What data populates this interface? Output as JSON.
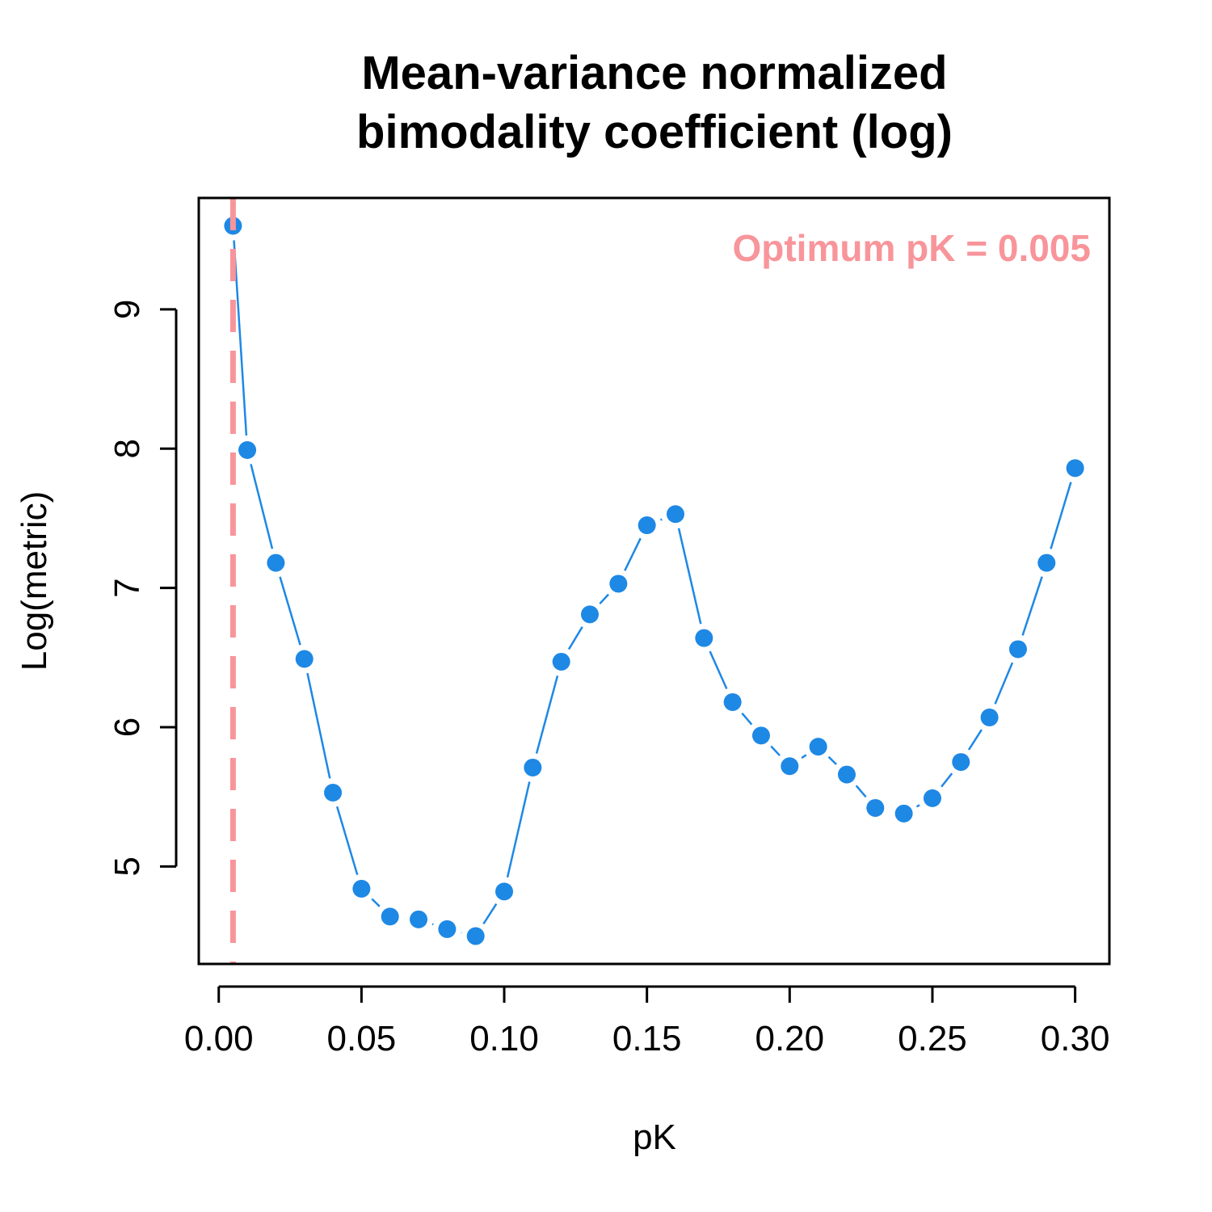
{
  "chart_data": {
    "type": "line",
    "title_lines": [
      "Mean-variance normalized",
      "bimodality coefficient (log)"
    ],
    "xlabel": "pK",
    "ylabel": "Log(metric)",
    "x_ticks": [
      0.0,
      0.05,
      0.1,
      0.15,
      0.2,
      0.25,
      0.3
    ],
    "x_tick_labels": [
      "0.00",
      "0.05",
      "0.10",
      "0.15",
      "0.20",
      "0.25",
      "0.30"
    ],
    "y_ticks": [
      5,
      6,
      7,
      8,
      9
    ],
    "y_tick_labels": [
      "5",
      "6",
      "7",
      "8",
      "9"
    ],
    "xlim": [
      -0.007,
      0.312
    ],
    "ylim": [
      4.3,
      9.8
    ],
    "grid": false,
    "series": [
      {
        "color": "#1E88E5",
        "x": [
          0.005,
          0.01,
          0.02,
          0.03,
          0.04,
          0.05,
          0.06,
          0.07,
          0.08,
          0.09,
          0.1,
          0.11,
          0.12,
          0.13,
          0.14,
          0.15,
          0.16,
          0.17,
          0.18,
          0.19,
          0.2,
          0.21,
          0.22,
          0.23,
          0.24,
          0.25,
          0.26,
          0.27,
          0.28,
          0.29,
          0.3
        ],
        "y": [
          9.6,
          7.99,
          7.18,
          6.49,
          5.53,
          4.84,
          4.64,
          4.62,
          4.55,
          4.5,
          4.82,
          5.71,
          6.47,
          6.81,
          7.03,
          7.45,
          7.53,
          6.64,
          6.18,
          5.94,
          5.72,
          5.86,
          5.66,
          5.42,
          5.38,
          5.49,
          5.75,
          6.07,
          6.56,
          7.18,
          7.86
        ]
      }
    ],
    "vline": {
      "x": 0.005,
      "color": "#F8959B",
      "style": "dashed"
    },
    "annotation": {
      "text": "Optimum pK = 0.005",
      "color": "#F8959B",
      "position": "top-right"
    }
  }
}
